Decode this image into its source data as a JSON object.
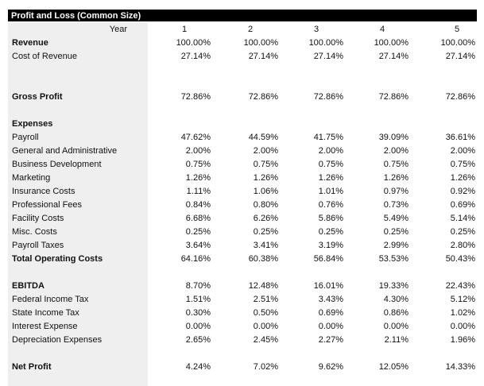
{
  "header": {
    "title": "Profit and Loss (Common Size)"
  },
  "table": {
    "columns": [
      "Year",
      "1",
      "2",
      "3",
      "4",
      "5"
    ],
    "groups": [
      {
        "rows": [
          {
            "label": "Revenue",
            "bold": true,
            "values": [
              "100.00%",
              "100.00%",
              "100.00%",
              "100.00%",
              "100.00%"
            ]
          },
          {
            "label": "Cost of Revenue",
            "values": [
              "27.14%",
              "27.14%",
              "27.14%",
              "27.14%",
              "27.14%"
            ]
          }
        ]
      },
      {
        "rows": [
          {
            "label": "Gross Profit",
            "bold": true,
            "values": [
              "72.86%",
              "72.86%",
              "72.86%",
              "72.86%",
              "72.86%"
            ]
          }
        ]
      },
      {
        "heading": "Expenses",
        "rows": [
          {
            "label": "Payroll",
            "values": [
              "47.62%",
              "44.59%",
              "41.75%",
              "39.09%",
              "36.61%"
            ]
          },
          {
            "label": "General and Administrative",
            "values": [
              "2.00%",
              "2.00%",
              "2.00%",
              "2.00%",
              "2.00%"
            ]
          },
          {
            "label": "Business Development",
            "values": [
              "0.75%",
              "0.75%",
              "0.75%",
              "0.75%",
              "0.75%"
            ]
          },
          {
            "label": "Marketing",
            "values": [
              "1.26%",
              "1.26%",
              "1.26%",
              "1.26%",
              "1.26%"
            ]
          },
          {
            "label": "Insurance Costs",
            "values": [
              "1.11%",
              "1.06%",
              "1.01%",
              "0.97%",
              "0.92%"
            ]
          },
          {
            "label": "Professional Fees",
            "values": [
              "0.84%",
              "0.80%",
              "0.76%",
              "0.73%",
              "0.69%"
            ]
          },
          {
            "label": "Facility Costs",
            "values": [
              "6.68%",
              "6.26%",
              "5.86%",
              "5.49%",
              "5.14%"
            ]
          },
          {
            "label": "Misc. Costs",
            "values": [
              "0.25%",
              "0.25%",
              "0.25%",
              "0.25%",
              "0.25%"
            ]
          },
          {
            "label": "Payroll Taxes",
            "values": [
              "3.64%",
              "3.41%",
              "3.19%",
              "2.99%",
              "2.80%"
            ]
          },
          {
            "label": "Total Operating Costs",
            "bold": true,
            "values": [
              "64.16%",
              "60.38%",
              "56.84%",
              "53.53%",
              "50.43%"
            ]
          }
        ]
      },
      {
        "rows": [
          {
            "label": "EBITDA",
            "bold": true,
            "values": [
              "8.70%",
              "12.48%",
              "16.01%",
              "19.33%",
              "22.43%"
            ]
          },
          {
            "label": "Federal Income Tax",
            "values": [
              "1.51%",
              "2.51%",
              "3.43%",
              "4.30%",
              "5.12%"
            ]
          },
          {
            "label": "State Income Tax",
            "values": [
              "0.30%",
              "0.50%",
              "0.69%",
              "0.86%",
              "1.02%"
            ]
          },
          {
            "label": "Interest Expense",
            "values": [
              "0.00%",
              "0.00%",
              "0.00%",
              "0.00%",
              "0.00%"
            ]
          },
          {
            "label": "Depreciation Expenses",
            "values": [
              "2.65%",
              "2.45%",
              "2.27%",
              "2.11%",
              "1.96%"
            ]
          }
        ]
      },
      {
        "rows": [
          {
            "label": "Net Profit",
            "bold": true,
            "values": [
              "4.24%",
              "7.02%",
              "9.62%",
              "12.05%",
              "14.33%"
            ]
          }
        ]
      }
    ]
  }
}
